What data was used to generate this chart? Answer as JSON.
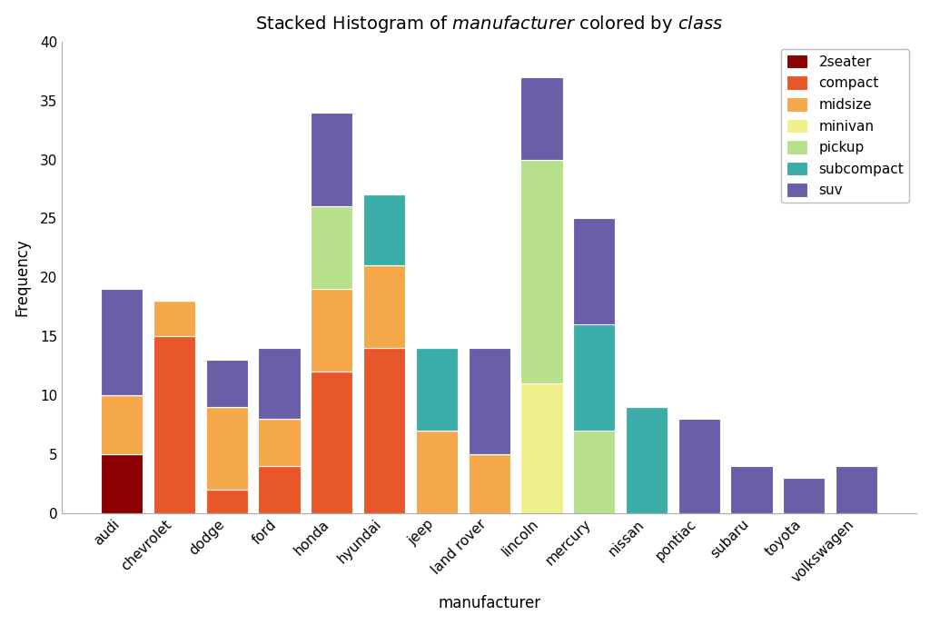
{
  "title": "Stacked Histogram of $\\it{manufacturer}$ colored by $\\it{class}$",
  "xlabel": "manufacturer",
  "ylabel": "Frequency",
  "ylim": [
    0,
    40
  ],
  "yticks": [
    0,
    5,
    10,
    15,
    20,
    25,
    30,
    35,
    40
  ],
  "manufacturers": [
    "audi",
    "chevrolet",
    "dodge",
    "ford",
    "honda",
    "hyundai",
    "jeep",
    "land rover",
    "lincoln",
    "mercury",
    "nissan",
    "pontiac",
    "subaru",
    "toyota",
    "volkswagen"
  ],
  "classes": [
    "2seater",
    "compact",
    "midsize",
    "minivan",
    "pickup",
    "subcompact",
    "suv"
  ],
  "colors": {
    "2seater": "#8B0000",
    "compact": "#E8572A",
    "midsize": "#F5A84A",
    "minivan": "#F0F08A",
    "pickup": "#B8E08A",
    "subcompact": "#3AADA8",
    "suv": "#6B5EA8"
  },
  "stacked_data": [
    [
      5,
      0,
      0,
      0,
      0,
      0,
      0,
      0,
      0,
      0,
      0,
      0,
      0,
      0,
      0
    ],
    [
      0,
      15,
      2,
      4,
      12,
      14,
      0,
      0,
      0,
      0,
      0,
      0,
      0,
      0,
      0
    ],
    [
      5,
      3,
      7,
      4,
      7,
      7,
      7,
      5,
      0,
      0,
      0,
      0,
      0,
      0,
      0
    ],
    [
      0,
      0,
      0,
      0,
      0,
      0,
      0,
      0,
      11,
      0,
      0,
      0,
      0,
      0,
      0
    ],
    [
      0,
      0,
      0,
      0,
      7,
      0,
      0,
      0,
      19,
      7,
      0,
      0,
      0,
      0,
      0
    ],
    [
      0,
      0,
      0,
      0,
      0,
      6,
      7,
      0,
      0,
      9,
      9,
      0,
      0,
      0,
      0
    ],
    [
      9,
      0,
      4,
      6,
      8,
      0,
      0,
      9,
      7,
      9,
      0,
      8,
      4,
      3,
      4
    ]
  ],
  "bg_color": "#ffffff",
  "bar_width": 0.8,
  "title_fontsize": 14,
  "axis_fontsize": 12,
  "tick_fontsize": 11,
  "legend_fontsize": 11
}
